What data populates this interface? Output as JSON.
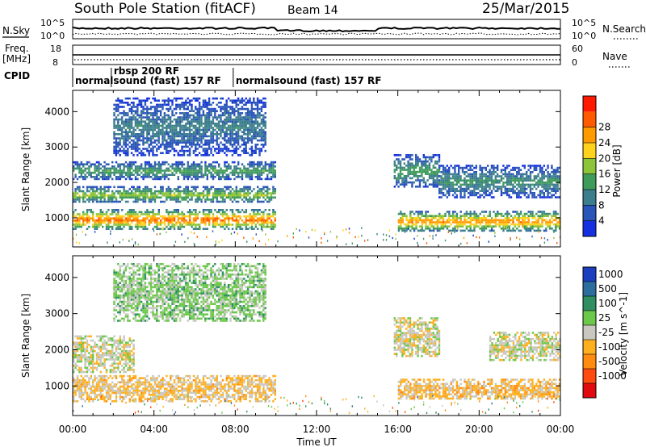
{
  "header": {
    "station": "South Pole Station (fitACF)",
    "beam": "Beam 14",
    "date": "25/Mar/2015"
  },
  "strips": {
    "nsky_label": "N.Sky",
    "nsearch_label": "N.Search",
    "nsky_ticks": [
      "10^5",
      "10^0"
    ],
    "nsearch_ticks": [
      "10^5",
      "10^0"
    ],
    "freq_label_1": "Freq.",
    "freq_label_2": "[MHz]",
    "freq_ticks": [
      "18",
      "8"
    ],
    "nave_label": "Nave",
    "nave_ticks": [
      "60",
      "0"
    ],
    "cpid_label": "CPID"
  },
  "cpid_segments": [
    {
      "label": "normalsound (fast) 157 RF",
      "row": "lower",
      "start_hour": 0.0
    },
    {
      "label": "rbsp 200 RF",
      "row": "upper",
      "start_hour": 1.9
    },
    {
      "label": "normalsound (fast) 157 RF",
      "row": "lower",
      "start_hour": 7.9
    }
  ],
  "axes": {
    "ylabel": "Slant Range [km]",
    "xlabel": "Time UT",
    "x_ticks": [
      "00:00",
      "04:00",
      "08:00",
      "12:00",
      "16:00",
      "20:00",
      "00:00"
    ],
    "y_ticks": [
      "1000",
      "2000",
      "3000",
      "4000"
    ]
  },
  "colorbars": {
    "power": {
      "label": "Power [dB]",
      "ticks": [
        "4",
        "8",
        "12",
        "16",
        "20",
        "24",
        "28"
      ],
      "colors": [
        "#1430e0",
        "#2a55b8",
        "#3c7e8c",
        "#3e9b5a",
        "#8cc43a",
        "#ffd21e",
        "#ff9a00",
        "#ff5a00",
        "#ff1a00"
      ]
    },
    "velocity": {
      "label": "Velocity [m s^-1]",
      "ticks": [
        "1000",
        "500",
        "100",
        "25",
        "-25",
        "-100",
        "-500",
        "-1000"
      ],
      "colors": [
        "#1b3fbf",
        "#2e6e9e",
        "#2f8f63",
        "#6cc84a",
        "#c8c8c0",
        "#ffb020",
        "#ff8c10",
        "#ff4a10",
        "#e00a10"
      ]
    }
  },
  "chart_data": [
    {
      "type": "heatmap",
      "title": "South Pole Station (fitACF) Beam 14 25/Mar/2015",
      "xlabel": "Time UT",
      "ylabel": "Slant Range [km]",
      "xlim_hours": [
        0,
        24
      ],
      "ylim_km": [
        180,
        4600
      ],
      "color_quantity": "Power [dB]",
      "color_range": [
        0,
        30
      ],
      "echo_regions": [
        {
          "t_start": 0.0,
          "t_end": 10.0,
          "r_low": 700,
          "r_high": 1250,
          "peak_db": 28
        },
        {
          "t_start": 0.0,
          "t_end": 10.0,
          "r_low": 1450,
          "r_high": 1900,
          "peak_db": 18
        },
        {
          "t_start": 0.0,
          "t_end": 10.0,
          "r_low": 2100,
          "r_high": 2600,
          "peak_db": 14
        },
        {
          "t_start": 2.0,
          "t_end": 9.5,
          "r_low": 2800,
          "r_high": 4400,
          "peak_db": 10
        },
        {
          "t_start": 15.8,
          "t_end": 18.0,
          "r_low": 1900,
          "r_high": 2800,
          "peak_db": 14
        },
        {
          "t_start": 16.0,
          "t_end": 24.0,
          "r_low": 650,
          "r_high": 1200,
          "peak_db": 26
        },
        {
          "t_start": 18.0,
          "t_end": 24.0,
          "r_low": 1600,
          "r_high": 2500,
          "peak_db": 12
        }
      ]
    },
    {
      "type": "heatmap",
      "xlabel": "Time UT",
      "ylabel": "Slant Range [km]",
      "xlim_hours": [
        0,
        24
      ],
      "ylim_km": [
        180,
        4600
      ],
      "color_quantity": "Velocity [m s^-1]",
      "color_range": [
        -1000,
        1000
      ],
      "echo_regions": [
        {
          "t_start": 0.0,
          "t_end": 10.0,
          "r_low": 600,
          "r_high": 1300,
          "velocity": -150
        },
        {
          "t_start": 0.0,
          "t_end": 3.0,
          "r_low": 1400,
          "r_high": 2400,
          "velocity": 0
        },
        {
          "t_start": 2.0,
          "t_end": 9.5,
          "r_low": 2800,
          "r_high": 4400,
          "velocity": 200
        },
        {
          "t_start": 15.8,
          "t_end": 18.0,
          "r_low": 1800,
          "r_high": 2900,
          "velocity": 0
        },
        {
          "t_start": 16.0,
          "t_end": 24.0,
          "r_low": 650,
          "r_high": 1200,
          "velocity": -200
        },
        {
          "t_start": 20.5,
          "t_end": 24.0,
          "r_low": 1700,
          "r_high": 2500,
          "velocity": 0
        }
      ]
    }
  ]
}
